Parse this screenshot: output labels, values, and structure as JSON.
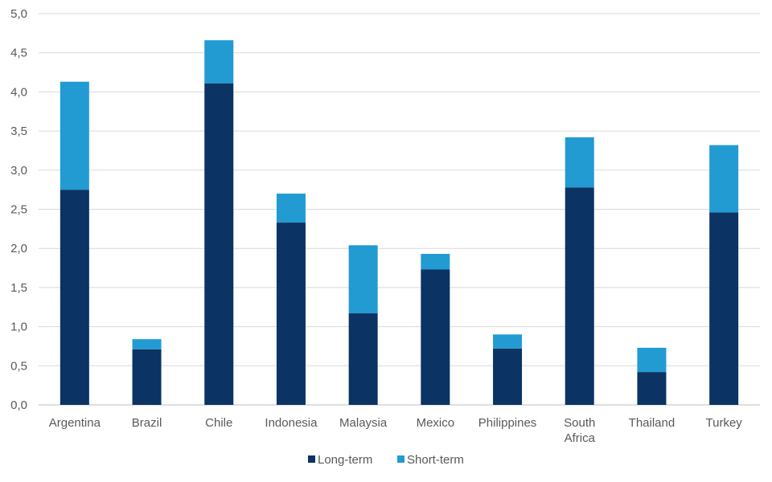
{
  "chart_data": {
    "type": "bar",
    "stacked": true,
    "categories": [
      "Argentina",
      "Brazil",
      "Chile",
      "Indonesia",
      "Malaysia",
      "Mexico",
      "Philippines",
      "South Africa",
      "Thailand",
      "Turkey"
    ],
    "series": [
      {
        "name": "Long-term",
        "color": "#0b3363",
        "values": [
          2.75,
          0.71,
          4.11,
          2.33,
          1.17,
          1.73,
          0.72,
          2.78,
          0.42,
          2.46
        ]
      },
      {
        "name": "Short-term",
        "color": "#219bd2",
        "values": [
          1.38,
          0.13,
          0.55,
          0.37,
          0.87,
          0.2,
          0.18,
          0.64,
          0.31,
          0.86
        ]
      }
    ],
    "ylim": [
      0,
      5
    ],
    "ytick_step": 0.5,
    "ytick_labels": [
      "0,0",
      "0,5",
      "1,0",
      "1,5",
      "2,0",
      "2,5",
      "3,0",
      "3,5",
      "4,0",
      "4,5",
      "5,0"
    ],
    "title": "",
    "xlabel": "",
    "ylabel": "",
    "grid": true,
    "legend_position": "bottom-center"
  }
}
